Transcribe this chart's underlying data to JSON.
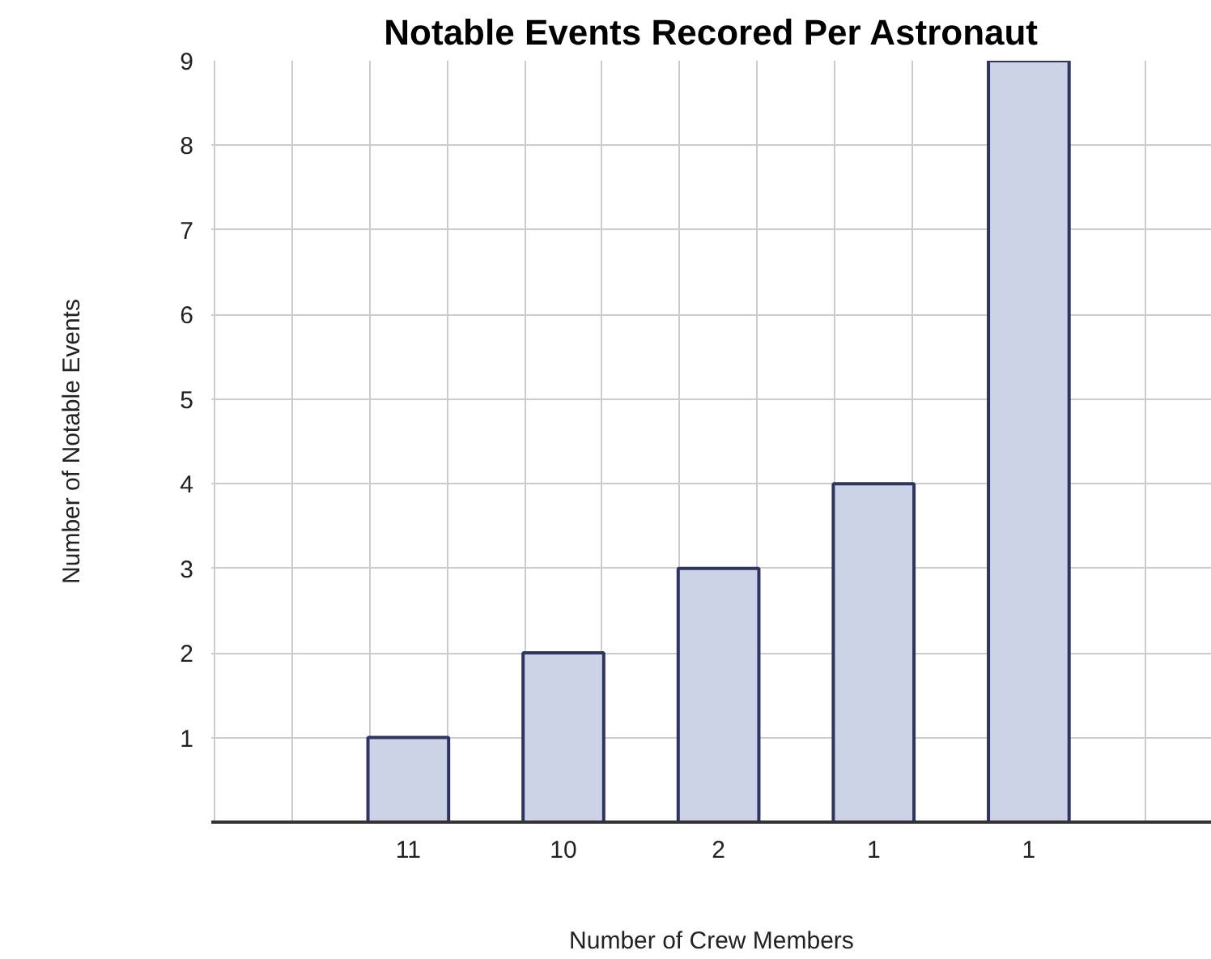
{
  "chart_data": {
    "type": "bar",
    "title": "Notable Events Recored Per Astronaut",
    "xlabel": "Number of Crew Members",
    "ylabel": "Number of Notable Events",
    "categories": [
      "11",
      "10",
      "2",
      "1",
      "1"
    ],
    "values": [
      1,
      2,
      3,
      4,
      9
    ],
    "color": "#cdd3e6",
    "ylim": [
      0,
      9
    ],
    "yticks": [
      1,
      2,
      3,
      4,
      5,
      6,
      7,
      8,
      9
    ],
    "grid": true
  }
}
